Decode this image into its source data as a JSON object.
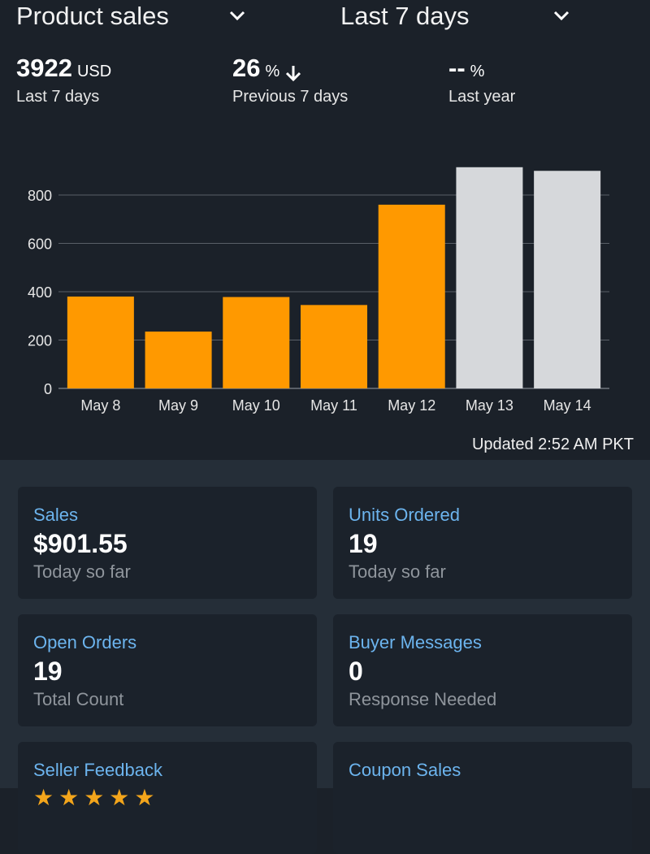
{
  "header": {
    "metric_select": "Product sales",
    "period_select": "Last 7 days"
  },
  "stats": [
    {
      "value": "3922",
      "unit": "USD",
      "label": "Last 7 days"
    },
    {
      "value": "26",
      "unit": "%",
      "label": "Previous 7 days",
      "trend": "down"
    },
    {
      "value": "--",
      "unit": "%",
      "label": "Last year"
    }
  ],
  "chart_data": {
    "type": "bar",
    "categories": [
      "May 8",
      "May 9",
      "May 10",
      "May 11",
      "May 12",
      "May 13",
      "May 14"
    ],
    "values": [
      380,
      235,
      378,
      345,
      760,
      915,
      900
    ],
    "bar_colors": [
      "#ff9900",
      "#ff9900",
      "#ff9900",
      "#ff9900",
      "#ff9900",
      "#d6d8db",
      "#d6d8db"
    ],
    "yticks": [
      0,
      200,
      400,
      600,
      800
    ],
    "ylim": [
      0,
      950
    ],
    "grid": true
  },
  "updated_text": "Updated 2:52 AM PKT",
  "cards": {
    "sales": {
      "title": "Sales",
      "value": "$901.55",
      "sub": "Today so far"
    },
    "units": {
      "title": "Units Ordered",
      "value": "19",
      "sub": "Today so far"
    },
    "orders": {
      "title": "Open Orders",
      "value": "19",
      "sub": "Total Count"
    },
    "messages": {
      "title": "Buyer Messages",
      "value": "0",
      "sub": "Response Needed"
    },
    "feedback": {
      "title": "Seller Feedback",
      "stars": "★★★★★"
    },
    "coupon": {
      "title": "Coupon Sales"
    }
  },
  "colors": {
    "accent": "#ff9900",
    "link": "#6cb4ee",
    "background": "#1b2129"
  }
}
